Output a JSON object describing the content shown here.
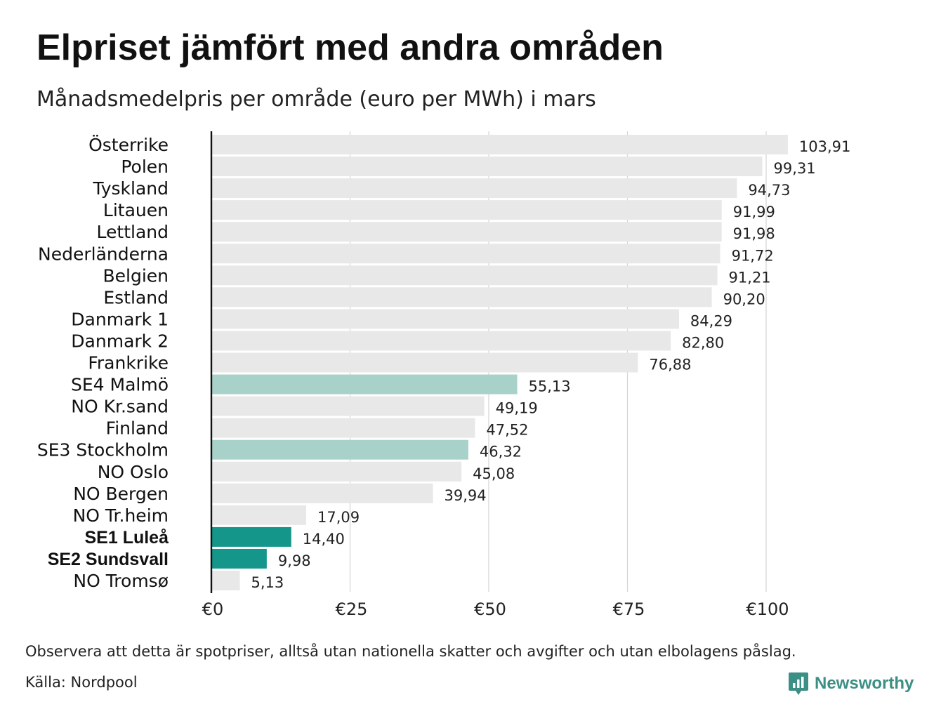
{
  "title": "Elpriset jämfört med andra områden",
  "subtitle": "Månadsmedelpris per område (euro per MWh) i mars",
  "note": "Observera att detta är spotpriser, alltså utan nationella skatter och avgifter och utan elbolagens påslag.",
  "source": "Källa: Nordpool",
  "brand": {
    "name": "Newsworthy",
    "icon": "newsworthy-chart-bubble-icon"
  },
  "colors": {
    "default_bar": "#e8e8e8",
    "se_south_bar": "#a8d1c9",
    "se_north_bar": "#14968a",
    "grid": "#d4d4d4",
    "axis": "#111111",
    "brand": "#3b8f84"
  },
  "chart_data": {
    "type": "bar",
    "orientation": "horizontal",
    "title": "Elpriset jämfört med andra områden",
    "subtitle": "Månadsmedelpris per område (euro per MWh) i mars",
    "categories": [
      "Österrike",
      "Polen",
      "Tyskland",
      "Litauen",
      "Lettland",
      "Nederländerna",
      "Belgien",
      "Estland",
      "Danmark 1",
      "Danmark 2",
      "Frankrike",
      "SE4 Malmö",
      "NO Kr.sand",
      "Finland",
      "SE3 Stockholm",
      "NO Oslo",
      "NO Bergen",
      "NO Tr.heim",
      "SE1 Luleå",
      "SE2 Sundsvall",
      "NO Tromsø"
    ],
    "values": [
      103.91,
      99.31,
      94.73,
      91.99,
      91.98,
      91.72,
      91.21,
      90.2,
      84.29,
      82.8,
      76.88,
      55.13,
      49.19,
      47.52,
      46.32,
      45.08,
      39.94,
      17.09,
      14.4,
      9.98,
      5.13
    ],
    "value_labels": [
      "103,91",
      "99,31",
      "94,73",
      "91,99",
      "91,98",
      "91,72",
      "91,21",
      "90,20",
      "84,29",
      "82,80",
      "76,88",
      "55,13",
      "49,19",
      "47,52",
      "46,32",
      "45,08",
      "39,94",
      "17,09",
      "14,40",
      "9,98",
      "5,13"
    ],
    "highlight": [
      "none",
      "none",
      "none",
      "none",
      "none",
      "none",
      "none",
      "none",
      "none",
      "none",
      "none",
      "se-south",
      "none",
      "none",
      "se-south",
      "none",
      "none",
      "none",
      "se-north",
      "se-north",
      "none"
    ],
    "bold_labels": [
      "SE1 Luleå",
      "SE2 Sundsvall"
    ],
    "xlim": [
      0,
      115
    ],
    "xticks": [
      0,
      25,
      50,
      75,
      100
    ],
    "xtick_labels": [
      "€0",
      "€25",
      "€50",
      "€75",
      "€100"
    ],
    "grid": true,
    "legend": "none"
  }
}
